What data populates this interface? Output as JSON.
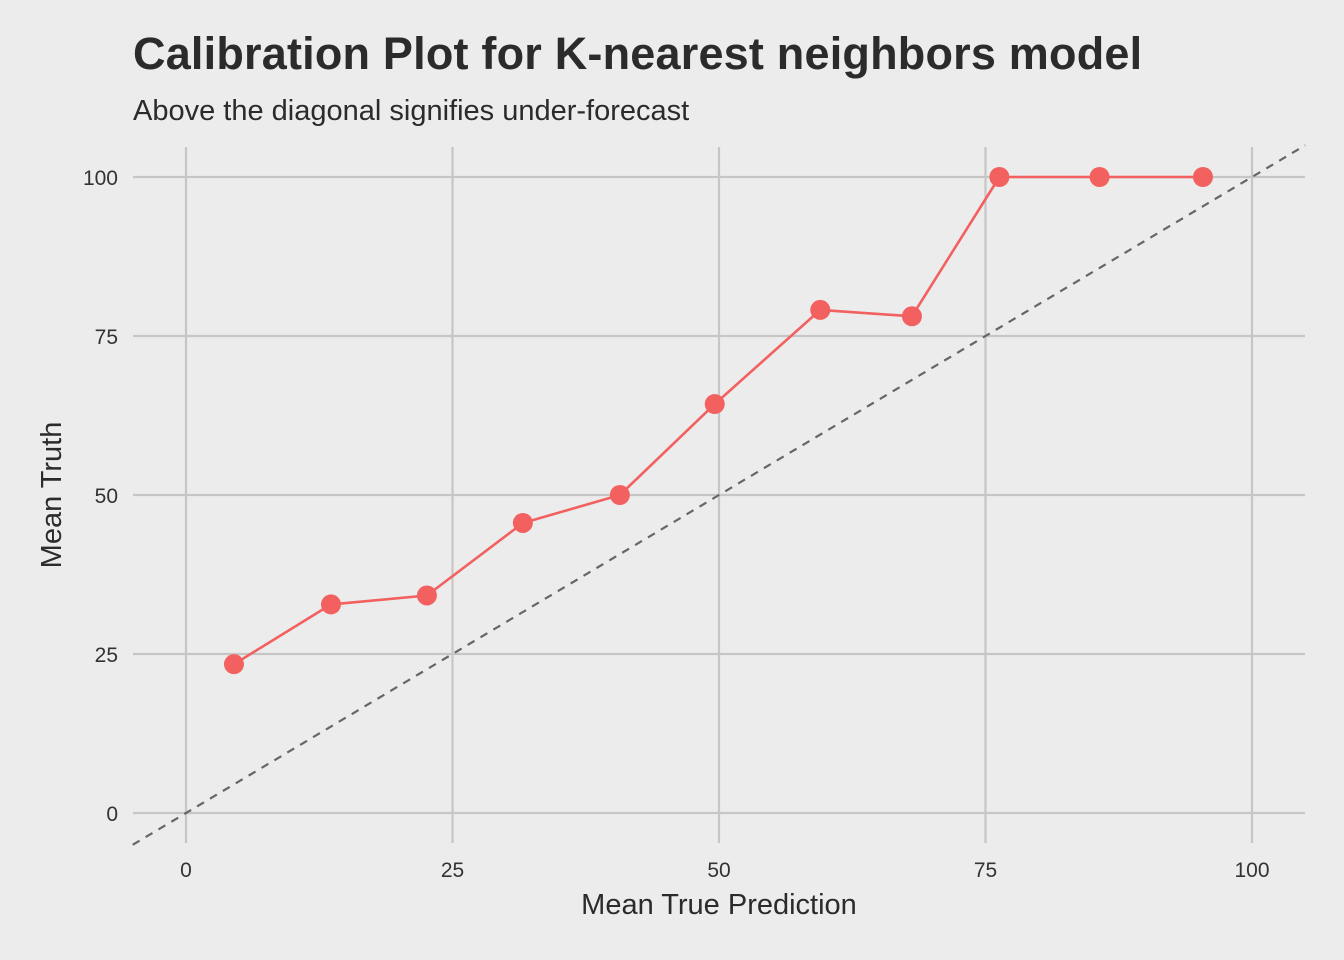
{
  "chart_data": {
    "type": "line",
    "title": "Calibration Plot for K-nearest neighbors model",
    "subtitle": "Above the diagonal signifies under-forecast",
    "xlabel": "Mean True Prediction",
    "ylabel": "Mean Truth",
    "xlim": [
      -5,
      105
    ],
    "ylim": [
      -5,
      105
    ],
    "x_ticks": [
      0,
      25,
      50,
      75,
      100
    ],
    "y_ticks": [
      0,
      25,
      50,
      75,
      100
    ],
    "x_tick_labels": [
      "0",
      "25",
      "50",
      "75",
      "100"
    ],
    "y_tick_labels": [
      "0",
      "25",
      "50",
      "75",
      "100"
    ],
    "grid": true,
    "series": [
      {
        "x": [
          4.5,
          13.6,
          22.6,
          31.6,
          40.7,
          49.6,
          59.5,
          68.1,
          76.3,
          85.7,
          95.4
        ],
        "y": [
          23.4,
          32.8,
          34.2,
          45.6,
          50.0,
          64.3,
          79.1,
          78.1,
          100,
          100,
          100
        ],
        "color": "#f26160"
      }
    ],
    "reference_line": {
      "description": "diagonal",
      "style": "dashed",
      "color": "#666666",
      "x": [
        -5,
        105
      ],
      "y": [
        -5,
        105
      ]
    }
  }
}
